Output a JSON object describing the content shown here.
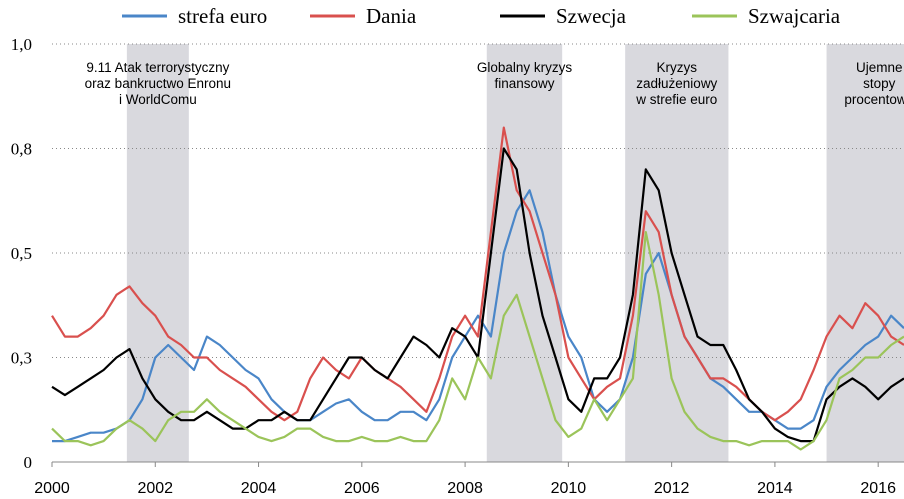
{
  "chart_data": {
    "type": "line",
    "xlim": [
      2000,
      2016.5
    ],
    "xticks": [
      2000,
      2002,
      2004,
      2006,
      2008,
      2010,
      2012,
      2014,
      2016
    ],
    "ylim": [
      0,
      1
    ],
    "yticks": [
      0,
      {
        "value": 0.25,
        "label": "0,3"
      },
      {
        "value": 0.5,
        "label": "0,5"
      },
      {
        "value": 0.75,
        "label": "0,8"
      },
      {
        "value": 1,
        "label": "1,0"
      }
    ],
    "grid": true,
    "legend": "top",
    "shaded_regions": [
      {
        "start": 2001.45,
        "end": 2002.65,
        "label": [
          "9.11 Atak terrorystyczny",
          "oraz bankructwo Enronu",
          "i WorldComu"
        ]
      },
      {
        "start": 2008.42,
        "end": 2009.88,
        "label": [
          "Globalny kryzys",
          "finansowy"
        ]
      },
      {
        "start": 2011.1,
        "end": 2013.1,
        "label": [
          "Kryzys",
          "zadłużeniowy",
          "w strefie euro"
        ]
      },
      {
        "start": 2015,
        "end": 2016.5,
        "label": [
          "Ujemne",
          "stopy",
          "procentowe"
        ]
      }
    ],
    "x": [
      2000,
      2000.25,
      2000.5,
      2000.75,
      2001,
      2001.25,
      2001.5,
      2001.75,
      2002,
      2002.25,
      2002.5,
      2002.75,
      2003,
      2003.25,
      2003.5,
      2003.75,
      2004,
      2004.25,
      2004.5,
      2004.75,
      2005,
      2005.25,
      2005.5,
      2005.75,
      2006,
      2006.25,
      2006.5,
      2006.75,
      2007,
      2007.25,
      2007.5,
      2007.75,
      2008,
      2008.25,
      2008.5,
      2008.75,
      2009,
      2009.25,
      2009.5,
      2009.75,
      2010,
      2010.25,
      2010.5,
      2010.75,
      2011,
      2011.25,
      2011.5,
      2011.75,
      2012,
      2012.25,
      2012.5,
      2012.75,
      2013,
      2013.25,
      2013.5,
      2013.75,
      2014,
      2014.25,
      2014.5,
      2014.75,
      2015,
      2015.25,
      2015.5,
      2015.75,
      2016,
      2016.25,
      2016.5
    ],
    "series": [
      {
        "name": "strefa euro",
        "color": "#4a86c8",
        "values": [
          0.05,
          0.05,
          0.06,
          0.07,
          0.07,
          0.08,
          0.1,
          0.15,
          0.25,
          0.28,
          0.25,
          0.22,
          0.3,
          0.28,
          0.25,
          0.22,
          0.2,
          0.15,
          0.12,
          0.1,
          0.1,
          0.12,
          0.14,
          0.15,
          0.12,
          0.1,
          0.1,
          0.12,
          0.12,
          0.1,
          0.15,
          0.25,
          0.3,
          0.35,
          0.3,
          0.5,
          0.6,
          0.65,
          0.55,
          0.4,
          0.3,
          0.25,
          0.15,
          0.12,
          0.15,
          0.25,
          0.45,
          0.5,
          0.4,
          0.3,
          0.25,
          0.2,
          0.18,
          0.15,
          0.12,
          0.12,
          0.1,
          0.08,
          0.08,
          0.1,
          0.18,
          0.22,
          0.25,
          0.28,
          0.3,
          0.35,
          0.32
        ]
      },
      {
        "name": "Dania",
        "color": "#d9504e",
        "values": [
          0.35,
          0.3,
          0.3,
          0.32,
          0.35,
          0.4,
          0.42,
          0.38,
          0.35,
          0.3,
          0.28,
          0.25,
          0.25,
          0.22,
          0.2,
          0.18,
          0.15,
          0.12,
          0.1,
          0.12,
          0.2,
          0.25,
          0.22,
          0.2,
          0.25,
          0.22,
          0.2,
          0.18,
          0.15,
          0.12,
          0.2,
          0.3,
          0.35,
          0.3,
          0.55,
          0.8,
          0.65,
          0.6,
          0.5,
          0.4,
          0.25,
          0.2,
          0.15,
          0.18,
          0.2,
          0.35,
          0.6,
          0.55,
          0.4,
          0.3,
          0.25,
          0.2,
          0.2,
          0.18,
          0.15,
          0.12,
          0.1,
          0.12,
          0.15,
          0.22,
          0.3,
          0.35,
          0.32,
          0.38,
          0.35,
          0.3,
          0.28
        ]
      },
      {
        "name": "Szwecja",
        "color": "#000000",
        "values": [
          0.18,
          0.16,
          0.18,
          0.2,
          0.22,
          0.25,
          0.27,
          0.2,
          0.15,
          0.12,
          0.1,
          0.1,
          0.12,
          0.1,
          0.08,
          0.08,
          0.1,
          0.1,
          0.12,
          0.1,
          0.1,
          0.15,
          0.2,
          0.25,
          0.25,
          0.22,
          0.2,
          0.25,
          0.3,
          0.28,
          0.25,
          0.32,
          0.3,
          0.25,
          0.5,
          0.75,
          0.7,
          0.5,
          0.35,
          0.25,
          0.15,
          0.12,
          0.2,
          0.2,
          0.25,
          0.4,
          0.7,
          0.65,
          0.5,
          0.4,
          0.3,
          0.28,
          0.28,
          0.22,
          0.15,
          0.12,
          0.08,
          0.06,
          0.05,
          0.05,
          0.15,
          0.18,
          0.2,
          0.18,
          0.15,
          0.18,
          0.2
        ]
      },
      {
        "name": "Szwajcaria",
        "color": "#9bc45a",
        "values": [
          0.08,
          0.05,
          0.05,
          0.04,
          0.05,
          0.08,
          0.1,
          0.08,
          0.05,
          0.1,
          0.12,
          0.12,
          0.15,
          0.12,
          0.1,
          0.08,
          0.06,
          0.05,
          0.06,
          0.08,
          0.08,
          0.06,
          0.05,
          0.05,
          0.06,
          0.05,
          0.05,
          0.06,
          0.05,
          0.05,
          0.1,
          0.2,
          0.15,
          0.25,
          0.2,
          0.35,
          0.4,
          0.3,
          0.2,
          0.1,
          0.06,
          0.08,
          0.15,
          0.1,
          0.15,
          0.2,
          0.55,
          0.4,
          0.2,
          0.12,
          0.08,
          0.06,
          0.05,
          0.05,
          0.04,
          0.05,
          0.05,
          0.05,
          0.03,
          0.05,
          0.1,
          0.2,
          0.22,
          0.25,
          0.25,
          0.28,
          0.3
        ]
      }
    ]
  }
}
